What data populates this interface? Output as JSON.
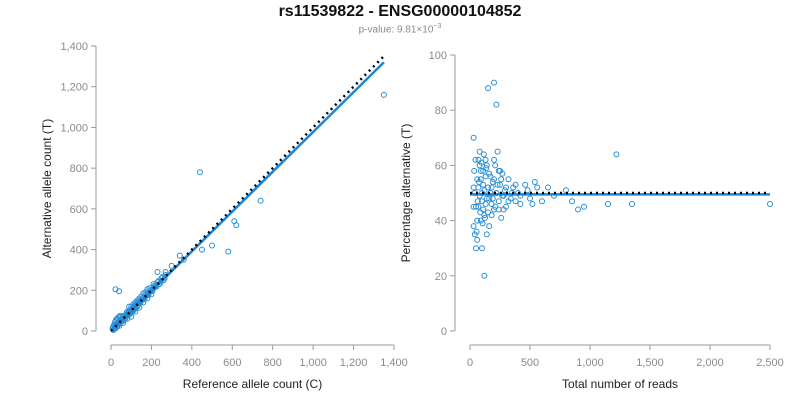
{
  "header": {
    "title": "rs11539822 - ENSG00000104852",
    "pvalue_prefix": "p-value: 9.81×10",
    "pvalue_exponent": "−3"
  },
  "colors": {
    "points": "#2a8fd6",
    "fit": "#1c86d9",
    "reference": "#000000",
    "axis": "#9a9a9a",
    "tick_text": "#8a8a8a"
  },
  "chart_data": [
    {
      "type": "scatter",
      "title": "",
      "xlabel": "Reference allele count (C)",
      "ylabel": "Alternative allele count (T)",
      "xlim": [
        0,
        1400
      ],
      "ylim": [
        0,
        1400
      ],
      "xticks": [
        0,
        200,
        400,
        600,
        800,
        1000,
        1200,
        1400
      ],
      "yticks": [
        0,
        200,
        400,
        600,
        800,
        1000,
        1200,
        1400
      ],
      "xtick_labels": [
        "0",
        "200",
        "400",
        "600",
        "800",
        "1,000",
        "1,200",
        "1,400"
      ],
      "ytick_labels": [
        "0",
        "200",
        "400",
        "600",
        "800",
        "1,000",
        "1,200",
        "1,400"
      ],
      "grid": false,
      "series": [
        {
          "points": [
            [
              20,
              15
            ],
            [
              25,
              30
            ],
            [
              30,
              20
            ],
            [
              35,
              40
            ],
            [
              40,
              35
            ],
            [
              45,
              50
            ],
            [
              50,
              45
            ],
            [
              55,
              60
            ],
            [
              60,
              50
            ],
            [
              65,
              70
            ],
            [
              70,
              60
            ],
            [
              75,
              80
            ],
            [
              80,
              75
            ],
            [
              85,
              90
            ],
            [
              90,
              80
            ],
            [
              95,
              100
            ],
            [
              100,
              90
            ],
            [
              105,
              110
            ],
            [
              110,
              100
            ],
            [
              115,
              120
            ],
            [
              120,
              110
            ],
            [
              125,
              130
            ],
            [
              130,
              120
            ],
            [
              140,
              140
            ],
            [
              150,
              150
            ],
            [
              160,
              155
            ],
            [
              170,
              170
            ],
            [
              180,
              175
            ],
            [
              190,
              190
            ],
            [
              200,
              195
            ],
            [
              210,
              210
            ],
            [
              220,
              220
            ],
            [
              230,
              240
            ],
            [
              240,
              230
            ],
            [
              250,
              260
            ],
            [
              260,
              250
            ],
            [
              270,
              275
            ],
            [
              15,
              10
            ],
            [
              18,
              25
            ],
            [
              22,
              12
            ],
            [
              28,
              35
            ],
            [
              33,
              28
            ],
            [
              38,
              45
            ],
            [
              42,
              38
            ],
            [
              48,
              55
            ],
            [
              52,
              48
            ],
            [
              58,
              62
            ],
            [
              62,
              55
            ],
            [
              68,
              72
            ],
            [
              72,
              66
            ],
            [
              78,
              85
            ],
            [
              82,
              78
            ],
            [
              88,
              95
            ],
            [
              92,
              88
            ],
            [
              98,
              105
            ],
            [
              102,
              96
            ],
            [
              108,
              115
            ],
            [
              112,
              106
            ],
            [
              118,
              125
            ],
            [
              122,
              116
            ],
            [
              128,
              135
            ],
            [
              132,
              126
            ],
            [
              138,
              145
            ],
            [
              145,
              138
            ],
            [
              155,
              160
            ],
            [
              165,
              158
            ],
            [
              175,
              180
            ],
            [
              185,
              178
            ],
            [
              195,
              200
            ],
            [
              205,
              198
            ],
            [
              215,
              222
            ],
            [
              225,
              218
            ],
            [
              235,
              245
            ],
            [
              245,
              238
            ],
            [
              255,
              265
            ],
            [
              265,
              258
            ],
            [
              15,
              30
            ],
            [
              20,
              45
            ],
            [
              30,
              60
            ],
            [
              40,
              70
            ],
            [
              25,
              55
            ],
            [
              35,
              65
            ],
            [
              45,
              75
            ],
            [
              10,
              20
            ],
            [
              12,
              5
            ],
            [
              8,
              12
            ],
            [
              40,
              25
            ],
            [
              60,
              40
            ],
            [
              80,
              60
            ],
            [
              100,
              70
            ],
            [
              120,
              95
            ],
            [
              140,
              115
            ],
            [
              160,
              140
            ],
            [
              180,
              160
            ],
            [
              200,
              180
            ],
            [
              60,
              75
            ],
            [
              80,
              95
            ],
            [
              100,
              120
            ],
            [
              120,
              140
            ],
            [
              140,
              160
            ],
            [
              160,
              185
            ],
            [
              180,
              205
            ],
            [
              22,
              205
            ],
            [
              40,
              195
            ],
            [
              60,
              60
            ],
            [
              300,
              320
            ],
            [
              340,
              370
            ],
            [
              360,
              350
            ],
            [
              440,
              780
            ],
            [
              450,
              400
            ],
            [
              500,
              420
            ],
            [
              580,
              390
            ],
            [
              610,
              540
            ],
            [
              620,
              520
            ],
            [
              740,
              640
            ],
            [
              1350,
              1160
            ],
            [
              90,
              120
            ],
            [
              110,
              130
            ],
            [
              130,
              150
            ],
            [
              150,
              170
            ],
            [
              170,
              190
            ],
            [
              190,
              210
            ],
            [
              210,
              230
            ],
            [
              230,
              290
            ],
            [
              270,
              290
            ]
          ]
        },
        {
          "name": "",
          "fit_line": [
            [
              0,
              0
            ],
            [
              1350,
              1320
            ]
          ]
        },
        {
          "name": "",
          "reference_line": [
            [
              0,
              0
            ],
            [
              1350,
              1350
            ]
          ]
        }
      ]
    },
    {
      "type": "scatter",
      "title": "",
      "xlabel": "Total number of reads",
      "ylabel": "Percentage alternative (T)",
      "xlim": [
        0,
        2500
      ],
      "ylim": [
        0,
        100
      ],
      "xticks": [
        0,
        500,
        1000,
        1500,
        2000,
        2500
      ],
      "yticks": [
        0,
        20,
        40,
        60,
        80,
        100
      ],
      "xtick_labels": [
        "0",
        "500",
        "1,000",
        "1,500",
        "2,000",
        "2,500"
      ],
      "ytick_labels": [
        "0",
        "20",
        "40",
        "60",
        "80",
        "100"
      ],
      "grid": false,
      "series": [
        {
          "points": [
            [
              30,
              70
            ],
            [
              40,
              35
            ],
            [
              50,
              30
            ],
            [
              60,
              55
            ],
            [
              70,
              45
            ],
            [
              80,
              60
            ],
            [
              90,
              40
            ],
            [
              100,
              50
            ],
            [
              110,
              58
            ],
            [
              120,
              42
            ],
            [
              130,
              62
            ],
            [
              140,
              48
            ],
            [
              150,
              52
            ],
            [
              160,
              38
            ],
            [
              170,
              56
            ],
            [
              180,
              46
            ],
            [
              190,
              54
            ],
            [
              200,
              44
            ],
            [
              210,
              60
            ],
            [
              220,
              50
            ],
            [
              230,
              65
            ],
            [
              240,
              47
            ],
            [
              250,
              53
            ],
            [
              260,
              41
            ],
            [
              270,
              57
            ],
            [
              280,
              49
            ],
            [
              290,
              51
            ],
            [
              300,
              45
            ],
            [
              320,
              55
            ],
            [
              340,
              48
            ],
            [
              360,
              52
            ],
            [
              380,
              47
            ],
            [
              400,
              50
            ],
            [
              420,
              46
            ],
            [
              460,
              53
            ],
            [
              500,
              48
            ],
            [
              540,
              54
            ],
            [
              600,
              47
            ],
            [
              650,
              52
            ],
            [
              700,
              49
            ],
            [
              800,
              51
            ],
            [
              850,
              47
            ],
            [
              900,
              44
            ],
            [
              950,
              45
            ],
            [
              1150,
              46
            ],
            [
              1220,
              64
            ],
            [
              1350,
              46
            ],
            [
              2500,
              46
            ],
            [
              150,
              88
            ],
            [
              200,
              90
            ],
            [
              220,
              82
            ],
            [
              120,
              20
            ],
            [
              60,
              33
            ],
            [
              80,
              65
            ],
            [
              100,
              30
            ],
            [
              140,
              35
            ],
            [
              70,
              62
            ],
            [
              90,
              58
            ],
            [
              110,
              44
            ],
            [
              130,
              56
            ],
            [
              160,
              48
            ],
            [
              180,
              42
            ],
            [
              200,
              62
            ],
            [
              240,
              58
            ],
            [
              260,
              55
            ],
            [
              280,
              44
            ],
            [
              40,
              50
            ],
            [
              50,
              45
            ],
            [
              60,
              40
            ],
            [
              70,
              52
            ],
            [
              80,
              49
            ],
            [
              90,
              55
            ],
            [
              100,
              47
            ],
            [
              110,
              53
            ],
            [
              120,
              51
            ],
            [
              130,
              46
            ],
            [
              140,
              60
            ],
            [
              150,
              43
            ],
            [
              160,
              57
            ],
            [
              170,
              50
            ],
            [
              180,
              52
            ],
            [
              190,
              48
            ],
            [
              200,
              55
            ],
            [
              210,
              45
            ],
            [
              220,
              50
            ],
            [
              230,
              53
            ],
            [
              240,
              44
            ],
            [
              250,
              58
            ],
            [
              270,
              49
            ],
            [
              300,
              52
            ],
            [
              320,
              47
            ],
            [
              350,
              50
            ],
            [
              380,
              53
            ],
            [
              420,
              49
            ],
            [
              480,
              51
            ],
            [
              520,
              46
            ],
            [
              560,
              52
            ],
            [
              30,
              38
            ],
            [
              30,
              45
            ],
            [
              30,
              52
            ],
            [
              35,
              58
            ],
            [
              45,
              62
            ],
            [
              55,
              36
            ],
            [
              65,
              47
            ],
            [
              75,
              54
            ],
            [
              85,
              43
            ],
            [
              95,
              61
            ],
            [
              105,
              39
            ],
            [
              115,
              64
            ],
            [
              125,
              41
            ],
            [
              135,
              59
            ]
          ]
        },
        {
          "name": "",
          "fit_line": [
            [
              0,
              49.5
            ],
            [
              2500,
              49.5
            ]
          ]
        },
        {
          "name": "",
          "reference_line": [
            [
              0,
              50
            ],
            [
              2500,
              50
            ]
          ]
        }
      ]
    }
  ]
}
